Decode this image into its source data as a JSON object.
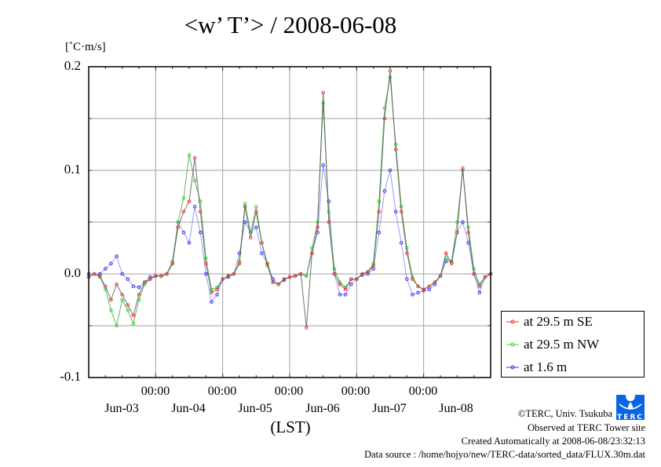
{
  "chart_data": {
    "type": "line",
    "title": "<w’ T’> / 2008-06-08",
    "ylabel": "[˚C·m/s]",
    "xlabel": "(LST)",
    "ylim": [
      -0.1,
      0.2
    ],
    "yticks": [
      "0.2",
      "0.1",
      "0.0",
      "-0.1"
    ],
    "ytick_values": [
      0.2,
      0.1,
      0.0,
      -0.1
    ],
    "ygrid_step": 0.05,
    "xlim_hours": [
      0,
      144
    ],
    "x_start": "2008-06-03 00:00",
    "xtick_time_labels": [
      "00:00",
      "00:00",
      "00:00",
      "00:00",
      "00:00"
    ],
    "xtick_time_hours": [
      24,
      48,
      72,
      96,
      120
    ],
    "xtick_day_labels": [
      "Jun-03",
      "Jun-04",
      "Jun-05",
      "Jun-06",
      "Jun-07",
      "Jun-08"
    ],
    "grid": true,
    "legend_placement": "right",
    "x_hours": [
      0,
      2,
      4,
      6,
      8,
      10,
      12,
      14,
      16,
      18,
      20,
      22,
      24,
      26,
      28,
      30,
      32,
      34,
      36,
      38,
      40,
      42,
      44,
      46,
      48,
      50,
      52,
      54,
      56,
      58,
      60,
      62,
      64,
      66,
      68,
      70,
      72,
      74,
      76,
      78,
      80,
      82,
      84,
      86,
      88,
      90,
      92,
      94,
      96,
      98,
      100,
      102,
      104,
      106,
      108,
      110,
      112,
      114,
      116,
      118,
      120,
      122,
      124,
      126,
      128,
      130,
      132,
      134,
      136,
      138,
      140,
      142,
      144
    ],
    "series": [
      {
        "name": "at 29.5 m SE",
        "color": "#ff3030",
        "values": [
          -0.003,
          0.0,
          -0.002,
          -0.012,
          -0.025,
          -0.01,
          -0.02,
          -0.03,
          -0.04,
          -0.02,
          -0.008,
          -0.005,
          -0.002,
          -0.002,
          0.0,
          0.01,
          0.045,
          0.06,
          0.07,
          0.112,
          0.06,
          0.01,
          -0.018,
          -0.015,
          -0.005,
          -0.002,
          0.0,
          0.01,
          0.065,
          0.035,
          0.06,
          0.03,
          0.01,
          -0.008,
          -0.01,
          -0.005,
          -0.003,
          -0.002,
          0.0,
          -0.052,
          0.02,
          0.045,
          0.175,
          0.05,
          0.0,
          -0.01,
          -0.015,
          -0.005,
          -0.005,
          0.0,
          0.002,
          0.008,
          0.06,
          0.15,
          0.196,
          0.12,
          0.06,
          0.02,
          -0.005,
          -0.012,
          -0.015,
          -0.012,
          -0.008,
          -0.002,
          0.02,
          0.01,
          0.04,
          0.102,
          0.04,
          0.0,
          -0.012,
          -0.003,
          0.0
        ]
      },
      {
        "name": "at 29.5 m NW",
        "color": "#30e030",
        "values": [
          -0.003,
          0.0,
          -0.003,
          -0.015,
          -0.035,
          -0.05,
          -0.025,
          -0.035,
          -0.048,
          -0.025,
          -0.01,
          -0.005,
          -0.002,
          -0.002,
          0.0,
          0.012,
          0.05,
          0.073,
          0.115,
          0.09,
          0.07,
          0.015,
          -0.015,
          -0.013,
          -0.005,
          -0.002,
          0.0,
          0.012,
          0.068,
          0.04,
          0.065,
          0.03,
          0.008,
          -0.008,
          -0.01,
          -0.005,
          -0.003,
          -0.002,
          0.0,
          -0.002,
          0.025,
          0.05,
          0.165,
          0.06,
          0.005,
          -0.008,
          -0.013,
          -0.005,
          -0.005,
          0.0,
          0.002,
          0.01,
          0.07,
          0.16,
          0.19,
          0.125,
          0.065,
          0.025,
          -0.003,
          -0.012,
          -0.015,
          -0.012,
          -0.008,
          -0.002,
          0.015,
          0.012,
          0.05,
          0.1,
          0.045,
          0.005,
          -0.01,
          -0.003,
          0.0
        ]
      },
      {
        "name": "at 1.6 m",
        "color": "#3030ff",
        "values": [
          0.0,
          0.0,
          0.0,
          0.005,
          0.01,
          0.017,
          0.0,
          -0.005,
          -0.012,
          -0.013,
          -0.008,
          -0.003,
          -0.002,
          -0.002,
          0.0,
          0.01,
          0.05,
          0.04,
          0.03,
          0.065,
          0.04,
          0.0,
          -0.027,
          -0.02,
          -0.005,
          -0.003,
          0.0,
          0.02,
          0.05,
          0.04,
          0.045,
          0.02,
          0.01,
          -0.005,
          -0.01,
          -0.006,
          -0.003,
          -0.002,
          0.0,
          -0.002,
          0.02,
          0.04,
          0.105,
          0.07,
          0.0,
          -0.02,
          -0.02,
          -0.01,
          -0.005,
          -0.001,
          0.0,
          0.005,
          0.04,
          0.08,
          0.1,
          0.06,
          0.03,
          -0.005,
          -0.02,
          -0.018,
          -0.016,
          -0.015,
          -0.01,
          -0.002,
          0.012,
          0.012,
          0.04,
          0.05,
          0.03,
          0.0,
          -0.018,
          -0.003,
          0.0
        ]
      }
    ]
  },
  "footer": {
    "copyright": "©TERC, Univ. Tsukuba",
    "observed": "Observed at TERC Tower site",
    "created": "Created Automatically at 2008-06-08/23:32:13",
    "source": "Data source : /home/hojyo/new/TERC-data/sorted_data/FLUX.30m.dat",
    "logo_text": "TERC",
    "logo_color": "#0a64e6"
  }
}
